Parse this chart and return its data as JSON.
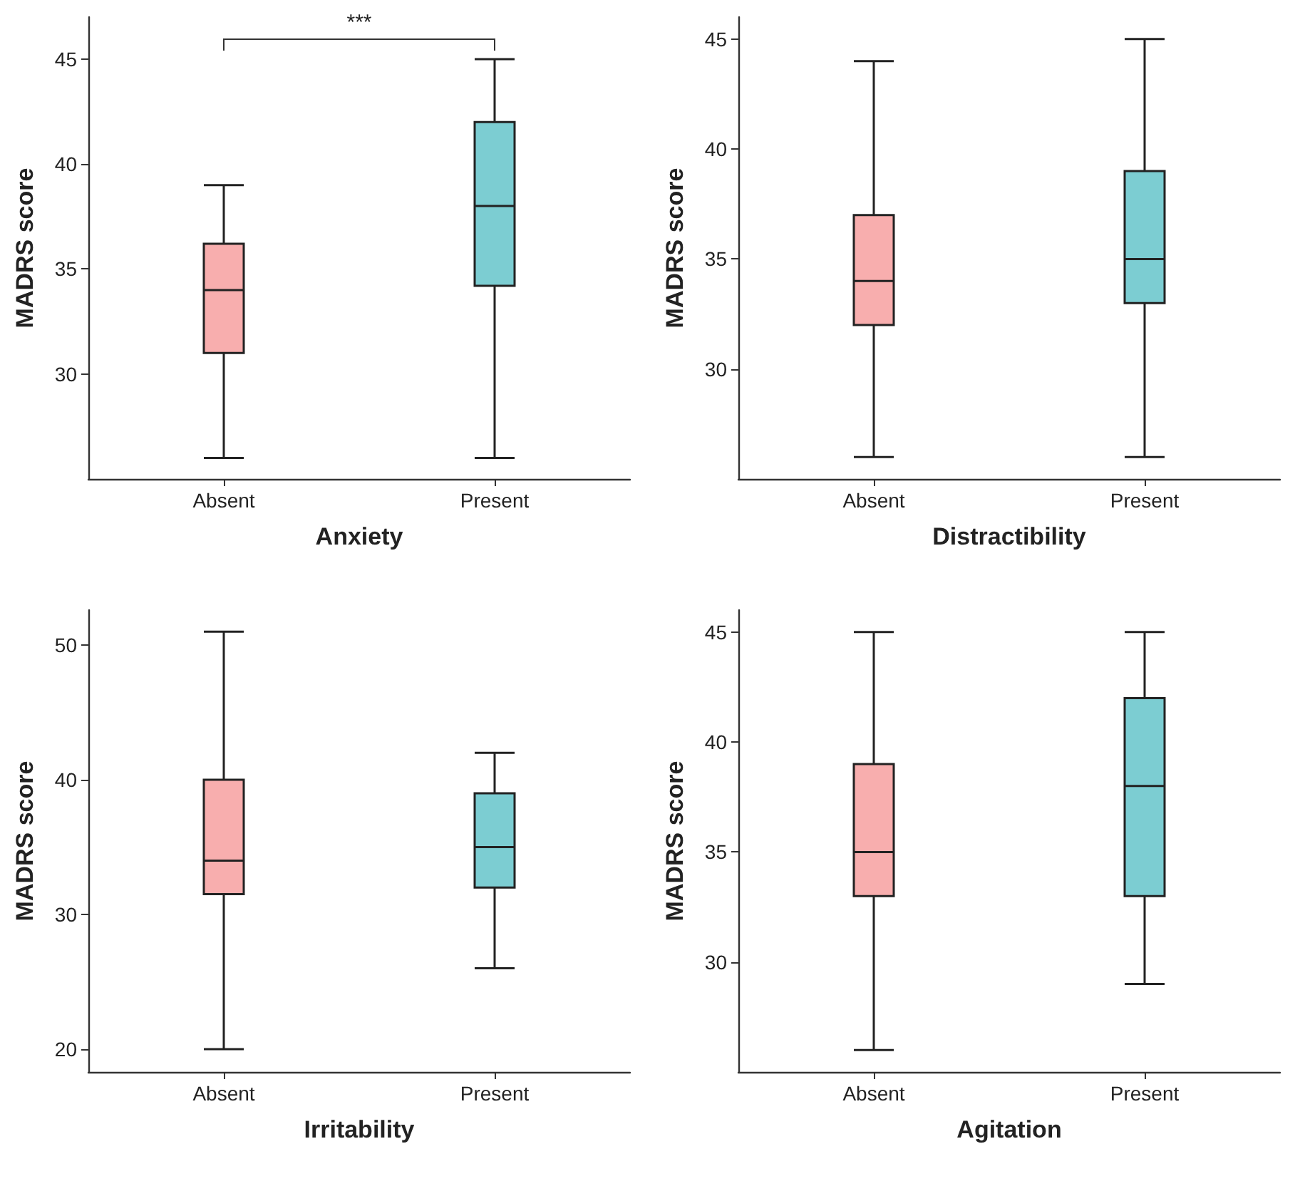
{
  "chart_data": [
    {
      "type": "box",
      "xlabel": "Anxiety",
      "ylabel": "MADRS score",
      "categories": [
        "Absent",
        "Present"
      ],
      "colors": [
        "#f8aeae",
        "#7ccdd2"
      ],
      "ylim": [
        25,
        47
      ],
      "yticks": [
        30,
        35,
        40,
        45
      ],
      "annotations": [
        "***"
      ],
      "boxes": [
        {
          "low": 26,
          "q1": 31,
          "median": 34,
          "q3": 36.2,
          "high": 39
        },
        {
          "low": 26,
          "q1": 34.2,
          "median": 38,
          "q3": 42,
          "high": 45
        }
      ]
    },
    {
      "type": "box",
      "xlabel": "Distractibility",
      "ylabel": "MADRS score",
      "categories": [
        "Absent",
        "Present"
      ],
      "colors": [
        "#f8aeae",
        "#7ccdd2"
      ],
      "ylim": [
        25,
        46
      ],
      "yticks": [
        30,
        35,
        40,
        45
      ],
      "boxes": [
        {
          "low": 26,
          "q1": 32,
          "median": 34,
          "q3": 37,
          "high": 44
        },
        {
          "low": 26,
          "q1": 33,
          "median": 35,
          "q3": 39,
          "high": 45
        }
      ]
    },
    {
      "type": "box",
      "xlabel": "Irritability",
      "ylabel": "MADRS score",
      "categories": [
        "Absent",
        "Present"
      ],
      "colors": [
        "#f8aeae",
        "#7ccdd2"
      ],
      "ylim": [
        18.3,
        52.6
      ],
      "yticks": [
        20,
        30,
        40,
        50
      ],
      "boxes": [
        {
          "low": 20,
          "q1": 31.5,
          "median": 34,
          "q3": 40,
          "high": 51
        },
        {
          "low": 26,
          "q1": 32,
          "median": 35,
          "q3": 39,
          "high": 42
        }
      ]
    },
    {
      "type": "box",
      "xlabel": "Agitation",
      "ylabel": "MADRS score",
      "categories": [
        "Absent",
        "Present"
      ],
      "colors": [
        "#f8aeae",
        "#7ccdd2"
      ],
      "ylim": [
        25,
        46
      ],
      "yticks": [
        30,
        35,
        40,
        45
      ],
      "boxes": [
        {
          "low": 26,
          "q1": 33,
          "median": 35,
          "q3": 39,
          "high": 45
        },
        {
          "low": 29,
          "q1": 33,
          "median": 38,
          "q3": 42,
          "high": 45
        }
      ]
    }
  ]
}
